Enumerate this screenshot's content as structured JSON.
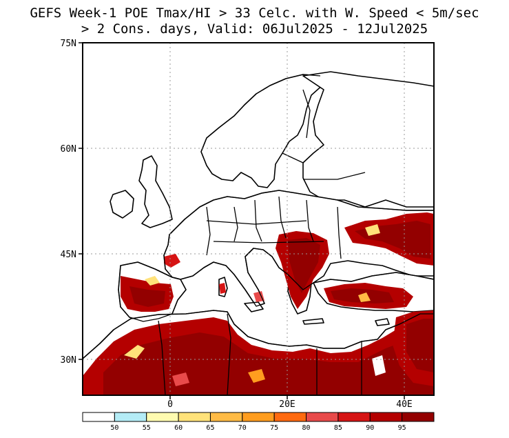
{
  "title": {
    "line1": "GEFS Week-1 POE Tmax/HI > 33 Celc. with W. Speed < 5m/sec",
    "line2": "> 2 Cons. days, Valid: 06Jul2025 - 12Jul2025"
  },
  "map": {
    "lon_range": [
      -15,
      45
    ],
    "lat_range": [
      25,
      75
    ],
    "lat_labels": [
      "75N",
      "60N",
      "45N",
      "30N"
    ],
    "lon_labels": [
      "0",
      "20E",
      "40E"
    ],
    "gridlines": "dotted"
  },
  "colorbar": {
    "labels": [
      "50",
      "55",
      "60",
      "65",
      "70",
      "75",
      "80",
      "85",
      "90",
      "95"
    ],
    "colors": [
      "#ffffff",
      "#b4ecf6",
      "#fffbb0",
      "#ffe27a",
      "#ffbb45",
      "#ff9d1f",
      "#ff6a10",
      "#e84a4a",
      "#d61414",
      "#b40000",
      "#930000"
    ]
  }
}
